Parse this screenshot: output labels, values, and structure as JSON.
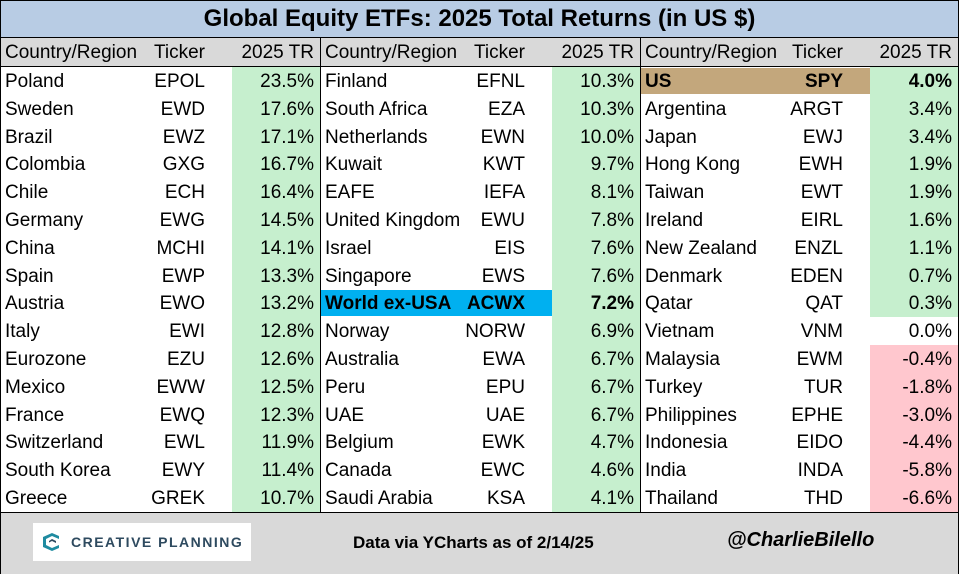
{
  "title": "Global Equity ETFs: 2025 Total Returns (in US $)",
  "headers": {
    "country": "Country/Region",
    "ticker": "Ticker",
    "tr": "2025 TR"
  },
  "colors": {
    "positive": "#c6efce",
    "negative": "#ffc7ce",
    "us_highlight": "#c3a77c",
    "world_highlight": "#00b0f0",
    "header": "#d9d9d9",
    "title": "#b8cce4"
  },
  "chart_data": {
    "type": "table",
    "columns": [
      "Country/Region",
      "Ticker",
      "2025 TR"
    ],
    "panels": [
      [
        {
          "country": "Poland",
          "ticker": "EPOL",
          "tr": "23.5%",
          "value": 23.5
        },
        {
          "country": "Sweden",
          "ticker": "EWD",
          "tr": "17.6%",
          "value": 17.6
        },
        {
          "country": "Brazil",
          "ticker": "EWZ",
          "tr": "17.1%",
          "value": 17.1
        },
        {
          "country": "Colombia",
          "ticker": "GXG",
          "tr": "16.7%",
          "value": 16.7
        },
        {
          "country": "Chile",
          "ticker": "ECH",
          "tr": "16.4%",
          "value": 16.4
        },
        {
          "country": "Germany",
          "ticker": "EWG",
          "tr": "14.5%",
          "value": 14.5
        },
        {
          "country": "China",
          "ticker": "MCHI",
          "tr": "14.1%",
          "value": 14.1
        },
        {
          "country": "Spain",
          "ticker": "EWP",
          "tr": "13.3%",
          "value": 13.3
        },
        {
          "country": "Austria",
          "ticker": "EWO",
          "tr": "13.2%",
          "value": 13.2
        },
        {
          "country": "Italy",
          "ticker": "EWI",
          "tr": "12.8%",
          "value": 12.8
        },
        {
          "country": "Eurozone",
          "ticker": "EZU",
          "tr": "12.6%",
          "value": 12.6
        },
        {
          "country": "Mexico",
          "ticker": "EWW",
          "tr": "12.5%",
          "value": 12.5
        },
        {
          "country": "France",
          "ticker": "EWQ",
          "tr": "12.3%",
          "value": 12.3
        },
        {
          "country": "Switzerland",
          "ticker": "EWL",
          "tr": "11.9%",
          "value": 11.9
        },
        {
          "country": "South Korea",
          "ticker": "EWY",
          "tr": "11.4%",
          "value": 11.4
        },
        {
          "country": "Greece",
          "ticker": "GREK",
          "tr": "10.7%",
          "value": 10.7
        }
      ],
      [
        {
          "country": "Finland",
          "ticker": "EFNL",
          "tr": "10.3%",
          "value": 10.3
        },
        {
          "country": "South Africa",
          "ticker": "EZA",
          "tr": "10.3%",
          "value": 10.3
        },
        {
          "country": "Netherlands",
          "ticker": "EWN",
          "tr": "10.0%",
          "value": 10.0
        },
        {
          "country": "Kuwait",
          "ticker": "KWT",
          "tr": "9.7%",
          "value": 9.7
        },
        {
          "country": "EAFE",
          "ticker": "IEFA",
          "tr": "8.1%",
          "value": 8.1
        },
        {
          "country": "United Kingdom",
          "ticker": "EWU",
          "tr": "7.8%",
          "value": 7.8
        },
        {
          "country": "Israel",
          "ticker": "EIS",
          "tr": "7.6%",
          "value": 7.6
        },
        {
          "country": "Singapore",
          "ticker": "EWS",
          "tr": "7.6%",
          "value": 7.6
        },
        {
          "country": "World ex-USA",
          "ticker": "ACWX",
          "tr": "7.2%",
          "value": 7.2,
          "highlight": "world"
        },
        {
          "country": "Norway",
          "ticker": "NORW",
          "tr": "6.9%",
          "value": 6.9
        },
        {
          "country": "Australia",
          "ticker": "EWA",
          "tr": "6.7%",
          "value": 6.7
        },
        {
          "country": "Peru",
          "ticker": "EPU",
          "tr": "6.7%",
          "value": 6.7
        },
        {
          "country": "UAE",
          "ticker": "UAE",
          "tr": "6.7%",
          "value": 6.7
        },
        {
          "country": "Belgium",
          "ticker": "EWK",
          "tr": "4.7%",
          "value": 4.7
        },
        {
          "country": "Canada",
          "ticker": "EWC",
          "tr": "4.6%",
          "value": 4.6
        },
        {
          "country": "Saudi Arabia",
          "ticker": "KSA",
          "tr": "4.1%",
          "value": 4.1
        }
      ],
      [
        {
          "country": "US",
          "ticker": "SPY",
          "tr": "4.0%",
          "value": 4.0,
          "highlight": "us"
        },
        {
          "country": "Argentina",
          "ticker": "ARGT",
          "tr": "3.4%",
          "value": 3.4
        },
        {
          "country": "Japan",
          "ticker": "EWJ",
          "tr": "3.4%",
          "value": 3.4
        },
        {
          "country": "Hong Kong",
          "ticker": "EWH",
          "tr": "1.9%",
          "value": 1.9
        },
        {
          "country": "Taiwan",
          "ticker": "EWT",
          "tr": "1.9%",
          "value": 1.9
        },
        {
          "country": "Ireland",
          "ticker": "EIRL",
          "tr": "1.6%",
          "value": 1.6
        },
        {
          "country": "New Zealand",
          "ticker": "ENZL",
          "tr": "1.1%",
          "value": 1.1
        },
        {
          "country": "Denmark",
          "ticker": "EDEN",
          "tr": "0.7%",
          "value": 0.7
        },
        {
          "country": "Qatar",
          "ticker": "QAT",
          "tr": "0.3%",
          "value": 0.3
        },
        {
          "country": "Vietnam",
          "ticker": "VNM",
          "tr": "0.0%",
          "value": 0.0
        },
        {
          "country": "Malaysia",
          "ticker": "EWM",
          "tr": "-0.4%",
          "value": -0.4
        },
        {
          "country": "Turkey",
          "ticker": "TUR",
          "tr": "-1.8%",
          "value": -1.8
        },
        {
          "country": "Philippines",
          "ticker": "EPHE",
          "tr": "-3.0%",
          "value": -3.0
        },
        {
          "country": "Indonesia",
          "ticker": "EIDO",
          "tr": "-4.4%",
          "value": -4.4
        },
        {
          "country": "India",
          "ticker": "INDA",
          "tr": "-5.8%",
          "value": -5.8
        },
        {
          "country": "Thailand",
          "ticker": "THD",
          "tr": "-6.6%",
          "value": -6.6
        }
      ]
    ]
  },
  "footer": {
    "logo_text": "CREATIVE PLANNING",
    "logo_icon": "creative-planning-logo-icon",
    "source": "Data via YCharts as of 2/14/25",
    "handle": "@CharlieBilello"
  }
}
